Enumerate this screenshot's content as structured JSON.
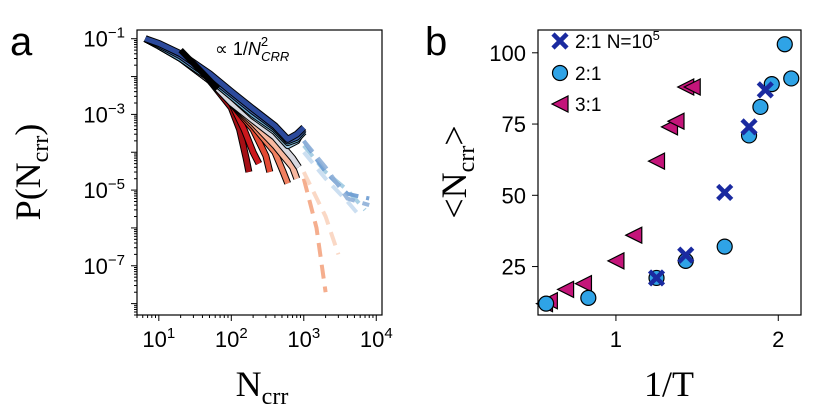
{
  "chart_data": [
    {
      "panel": "a",
      "type": "line",
      "xlabel": "N",
      "xlabel_sub": "crr",
      "ylabel": "P(N",
      "ylabel_sub": "crr",
      "ylabel_close": ")",
      "x_scale": "log",
      "y_scale": "log",
      "xlim": [
        5,
        12000
      ],
      "ylim": [
        5e-09,
        0.17
      ],
      "x_ticks": [
        {
          "value": 10,
          "base": "10",
          "exp": "1"
        },
        {
          "value": 100,
          "base": "10",
          "exp": "2"
        },
        {
          "value": 1000,
          "base": "10",
          "exp": "3"
        },
        {
          "value": 10000,
          "base": "10",
          "exp": "4"
        }
      ],
      "y_ticks": [
        {
          "value": 0.1,
          "base": "10",
          "exp": "−1"
        },
        {
          "value": 0.001,
          "base": "10",
          "exp": "−3"
        },
        {
          "value": 1e-05,
          "base": "10",
          "exp": "−5"
        },
        {
          "value": 1e-07,
          "base": "10",
          "exp": "−7"
        }
      ],
      "annotation": {
        "text_prefix": "∝ 1/",
        "text_var": "N",
        "text_sup": "2",
        "text_sub": "CRR",
        "line_x": [
          20,
          65
        ],
        "line_y": [
          0.05,
          0.0048
        ]
      },
      "solid_series": [
        {
          "color": "#a50f15",
          "x": [
            6.5,
            10,
            20,
            50,
            100,
            130,
            160,
            175
          ],
          "y": [
            0.1,
            0.065,
            0.03,
            0.008,
            0.0015,
            0.0004,
            7e-05,
            3e-05
          ]
        },
        {
          "color": "#cb181d",
          "x": [
            6.5,
            10,
            20,
            50,
            100,
            150,
            200,
            240
          ],
          "y": [
            0.1,
            0.065,
            0.03,
            0.008,
            0.002,
            0.0004,
            0.0001,
            5e-05
          ]
        },
        {
          "color": "#e34a33",
          "x": [
            6.5,
            10,
            20,
            50,
            100,
            200,
            300,
            340
          ],
          "y": [
            0.1,
            0.065,
            0.03,
            0.008,
            0.002,
            0.0004,
            8e-05,
            3e-05
          ]
        },
        {
          "color": "#f08060",
          "x": [
            6.5,
            10,
            20,
            50,
            100,
            200,
            400,
            520,
            600
          ],
          "y": [
            0.1,
            0.065,
            0.03,
            0.008,
            0.002,
            0.0005,
            0.0001,
            3e-05,
            1.5e-05
          ]
        },
        {
          "color": "#f7b8a0",
          "x": [
            6.5,
            10,
            20,
            50,
            100,
            200,
            400,
            700,
            800
          ],
          "y": [
            0.1,
            0.065,
            0.03,
            0.008,
            0.002,
            0.0006,
            0.00015,
            4e-05,
            2e-05
          ]
        },
        {
          "color": "#d8d8e0",
          "x": [
            6.5,
            10,
            20,
            50,
            100,
            200,
            400,
            700,
            850
          ],
          "y": [
            0.1,
            0.065,
            0.03,
            0.008,
            0.002,
            0.0007,
            0.00025,
            7e-05,
            4e-05
          ]
        },
        {
          "color": "#9ecae1",
          "x": [
            6.5,
            10,
            20,
            50,
            100,
            200,
            400,
            600,
            800,
            900
          ],
          "y": [
            0.1,
            0.065,
            0.03,
            0.009,
            0.003,
            0.0009,
            0.00035,
            0.00015,
            0.0002,
            0.0003
          ]
        },
        {
          "color": "#6baed6",
          "x": [
            6.5,
            10,
            20,
            50,
            100,
            200,
            400,
            600,
            800,
            1000
          ],
          "y": [
            0.1,
            0.065,
            0.03,
            0.009,
            0.003,
            0.001,
            0.0004,
            0.00018,
            0.00022,
            0.00035
          ]
        },
        {
          "color": "#4267b2",
          "x": [
            6.5,
            10,
            20,
            50,
            100,
            200,
            400,
            600,
            800,
            1000
          ],
          "y": [
            0.1,
            0.07,
            0.035,
            0.01,
            0.0035,
            0.0012,
            0.00045,
            0.0002,
            0.00025,
            0.0004
          ]
        },
        {
          "color": "#2c4a9c",
          "x": [
            6.5,
            10,
            20,
            50,
            100,
            200,
            400,
            600,
            800,
            1000
          ],
          "y": [
            0.1,
            0.075,
            0.04,
            0.012,
            0.004,
            0.0014,
            0.0005,
            0.00022,
            0.0003,
            0.00045
          ]
        }
      ],
      "dashed_series": [
        {
          "color": "#f4a582",
          "x": [
            1000,
            1500,
            2000
          ],
          "y": [
            2e-05,
            1e-06,
            2e-08
          ]
        },
        {
          "color": "#f9d4bf",
          "x": [
            1000,
            2000,
            3000
          ],
          "y": [
            3e-05,
            2e-06,
            2e-07
          ]
        },
        {
          "color": "#c6dbef",
          "x": [
            1000,
            2000,
            4000,
            6000
          ],
          "y": [
            0.0001,
            2e-05,
            5e-06,
            2e-06
          ]
        },
        {
          "color": "#9ecae1",
          "x": [
            1000,
            2000,
            4000,
            7000
          ],
          "y": [
            0.00015,
            3e-05,
            1e-05,
            3e-06
          ]
        },
        {
          "color": "#6b9bd1",
          "x": [
            1000,
            2000,
            4000,
            8000
          ],
          "y": [
            0.0002,
            3e-05,
            8e-06,
            6e-06
          ]
        },
        {
          "color": "#8fb0d8",
          "x": [
            1000,
            2000,
            4000,
            8000
          ],
          "y": [
            0.0002,
            4e-05,
            6e-06,
            4e-06
          ]
        }
      ]
    },
    {
      "panel": "b",
      "type": "scatter",
      "xlabel": "1/T",
      "ylabel": "<N",
      "ylabel_sub": "crr",
      "ylabel_close": ">",
      "xlim": [
        0.52,
        2.14
      ],
      "ylim": [
        8,
        108
      ],
      "x_ticks": [
        1,
        2
      ],
      "y_ticks": [
        25,
        50,
        75,
        100
      ],
      "legend_position": "top-left",
      "series": [
        {
          "name": "2:1 N=10",
          "name_sup": "5",
          "marker": "x",
          "color": "#1a2aa0",
          "x": [
            1.25,
            1.43,
            1.67,
            1.82,
            1.92
          ],
          "y": [
            21,
            29,
            51,
            74,
            87
          ]
        },
        {
          "name": "2:1",
          "marker": "circle",
          "color": "#2fa3e6",
          "x": [
            0.57,
            0.83,
            1.25,
            1.43,
            1.67,
            1.82,
            1.89,
            1.96,
            2.04,
            2.08
          ],
          "y": [
            12,
            14,
            21,
            27,
            32,
            71,
            81,
            89,
            103,
            91
          ]
        },
        {
          "name": "3:1",
          "marker": "triangle-left",
          "color": "#c4157a",
          "x": [
            0.56,
            0.59,
            0.69,
            0.8,
            1.0,
            1.11,
            1.25,
            1.33,
            1.37,
            1.43,
            1.47
          ],
          "y": [
            12,
            13,
            17,
            19,
            27,
            36,
            62,
            74,
            76,
            88,
            88
          ]
        }
      ]
    }
  ]
}
